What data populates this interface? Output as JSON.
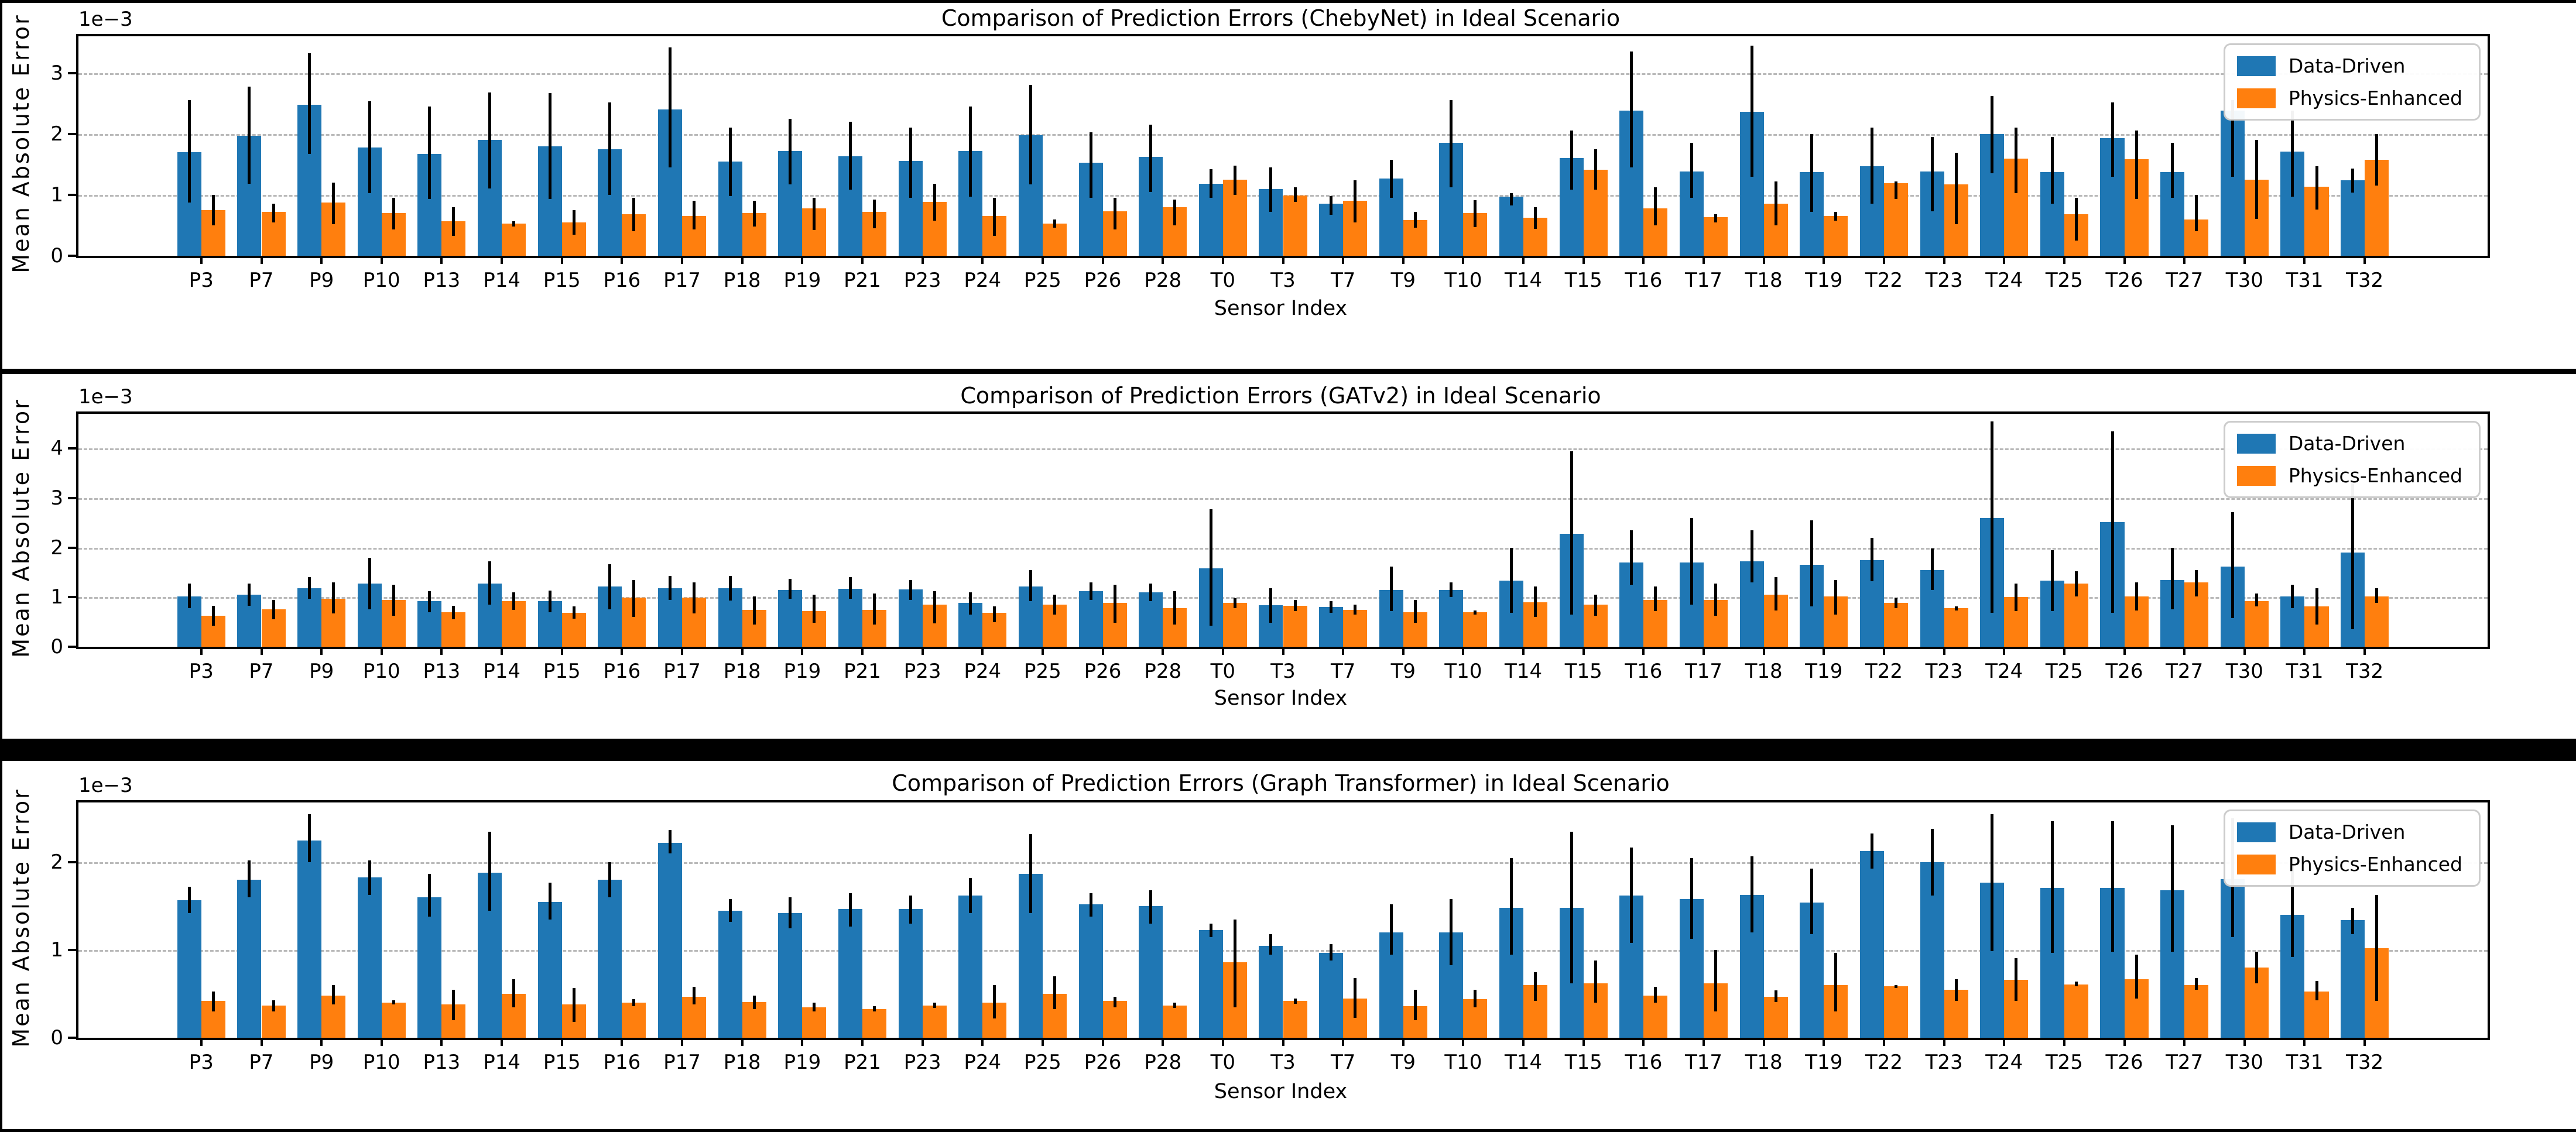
{
  "figure": {
    "background": "#ffffff",
    "separator_color": "#000000"
  },
  "colors": {
    "data_driven": "#1f77b4",
    "physics_enhanced": "#ff7f0e",
    "error_bar": "#000000",
    "grid": "#b9b9b9"
  },
  "chart_data": [
    {
      "type": "bar",
      "title": "Comparison of Prediction Errors (ChebyNet) in Ideal Scenario",
      "xlabel": "Sensor Index",
      "ylabel": "Mean Absolute Error",
      "y_offset_label": "1e−3",
      "grid": true,
      "legend_position": "upper right",
      "ylim": [
        0,
        3.6
      ],
      "yticks": [
        0,
        1,
        2,
        3
      ],
      "categories": [
        "P3",
        "P7",
        "P9",
        "P10",
        "P13",
        "P14",
        "P15",
        "P16",
        "P17",
        "P18",
        "P19",
        "P21",
        "P23",
        "P24",
        "P25",
        "P26",
        "P28",
        "T0",
        "T3",
        "T7",
        "T9",
        "T10",
        "T14",
        "T15",
        "T16",
        "T17",
        "T18",
        "T19",
        "T22",
        "T23",
        "T24",
        "T25",
        "T26",
        "T27",
        "T30",
        "T31",
        "T32"
      ],
      "series": [
        {
          "name": "Data-Driven",
          "color": "#1f77b4",
          "values": [
            1.7,
            1.97,
            2.48,
            1.78,
            1.67,
            1.9,
            1.8,
            1.75,
            2.4,
            1.55,
            1.72,
            1.63,
            1.56,
            1.72,
            1.98,
            1.53,
            1.62,
            1.18,
            1.09,
            0.85,
            1.27,
            1.85,
            0.97,
            1.6,
            2.38,
            1.38,
            2.36,
            1.37,
            1.47,
            1.38,
            2.0,
            1.37,
            1.93,
            1.37,
            2.38,
            1.71,
            1.24
          ],
          "err_low": [
            0.87,
            1.18,
            1.67,
            1.03,
            0.93,
            1.1,
            0.93,
            1.0,
            1.45,
            0.98,
            1.17,
            1.08,
            0.95,
            0.97,
            1.17,
            0.95,
            1.05,
            0.95,
            0.72,
            0.67,
            0.95,
            1.12,
            0.83,
            1.08,
            1.45,
            0.95,
            1.3,
            0.72,
            0.85,
            0.73,
            1.35,
            0.85,
            1.3,
            0.95,
            1.3,
            0.97,
            1.04
          ],
          "err_high": [
            2.55,
            2.77,
            3.32,
            2.53,
            2.45,
            2.68,
            2.67,
            2.52,
            3.42,
            2.1,
            2.25,
            2.2,
            2.1,
            2.45,
            2.8,
            2.03,
            2.15,
            1.42,
            1.45,
            0.98,
            1.57,
            2.55,
            1.03,
            2.05,
            3.35,
            1.85,
            3.45,
            2.0,
            2.1,
            1.95,
            2.62,
            1.95,
            2.52,
            1.85,
            2.55,
            2.38,
            1.43
          ]
        },
        {
          "name": "Physics-Enhanced",
          "color": "#ff7f0e",
          "values": [
            0.75,
            0.72,
            0.87,
            0.7,
            0.57,
            0.53,
            0.55,
            0.68,
            0.65,
            0.7,
            0.78,
            0.72,
            0.88,
            0.65,
            0.53,
            0.73,
            0.8,
            1.25,
            0.99,
            0.9,
            0.59,
            0.7,
            0.62,
            1.41,
            0.78,
            0.63,
            0.85,
            0.65,
            1.19,
            1.17,
            1.59,
            0.68,
            1.58,
            0.6,
            1.25,
            1.13,
            1.57
          ],
          "err_low": [
            0.5,
            0.55,
            0.52,
            0.43,
            0.33,
            0.48,
            0.35,
            0.4,
            0.43,
            0.48,
            0.42,
            0.45,
            0.58,
            0.33,
            0.46,
            0.43,
            0.5,
            1.0,
            0.88,
            0.55,
            0.46,
            0.47,
            0.44,
            1.08,
            0.5,
            0.55,
            0.5,
            0.58,
            0.93,
            0.52,
            1.03,
            0.25,
            0.93,
            0.4,
            0.6,
            0.76,
            1.15
          ],
          "err_high": [
            1.0,
            0.85,
            1.2,
            0.95,
            0.8,
            0.57,
            0.75,
            0.95,
            0.9,
            0.9,
            0.95,
            0.92,
            1.18,
            0.95,
            0.6,
            0.95,
            0.92,
            1.48,
            1.12,
            1.24,
            0.72,
            0.91,
            0.8,
            1.75,
            1.12,
            0.68,
            1.22,
            0.72,
            1.22,
            1.69,
            2.1,
            0.95,
            2.05,
            1.0,
            1.9,
            1.47,
            2.0
          ]
        }
      ]
    },
    {
      "type": "bar",
      "title": "Comparison of Prediction Errors (GATv2) in Ideal Scenario",
      "xlabel": "Sensor Index",
      "ylabel": "Mean Absolute Error",
      "y_offset_label": "1e−3",
      "grid": true,
      "legend_position": "upper right",
      "ylim": [
        0,
        4.7
      ],
      "yticks": [
        0,
        1,
        2,
        3,
        4
      ],
      "categories": [
        "P3",
        "P7",
        "P9",
        "P10",
        "P13",
        "P14",
        "P15",
        "P16",
        "P17",
        "P18",
        "P19",
        "P21",
        "P23",
        "P24",
        "P25",
        "P26",
        "P28",
        "T0",
        "T3",
        "T7",
        "T9",
        "T10",
        "T14",
        "T15",
        "T16",
        "T17",
        "T18",
        "T19",
        "T22",
        "T23",
        "T24",
        "T25",
        "T26",
        "T27",
        "T30",
        "T31",
        "T32"
      ],
      "series": [
        {
          "name": "Data-Driven",
          "color": "#1f77b4",
          "values": [
            1.02,
            1.05,
            1.18,
            1.27,
            0.92,
            1.28,
            0.92,
            1.22,
            1.18,
            1.18,
            1.15,
            1.17,
            1.16,
            0.88,
            1.22,
            1.12,
            1.1,
            1.58,
            0.84,
            0.8,
            1.15,
            1.15,
            1.33,
            2.28,
            1.7,
            1.7,
            1.72,
            1.65,
            1.75,
            1.55,
            2.6,
            1.33,
            2.52,
            1.35,
            1.62,
            1.02,
            1.9
          ],
          "err_low": [
            0.78,
            0.83,
            0.97,
            0.75,
            0.7,
            0.85,
            0.7,
            0.76,
            0.95,
            0.93,
            0.97,
            0.97,
            0.95,
            0.65,
            0.92,
            0.95,
            0.92,
            0.42,
            0.48,
            0.68,
            0.72,
            1.0,
            0.68,
            0.65,
            1.25,
            0.85,
            1.3,
            0.82,
            1.32,
            1.15,
            0.68,
            0.72,
            0.68,
            0.75,
            0.58,
            0.78,
            0.35
          ],
          "err_high": [
            1.28,
            1.28,
            1.4,
            1.8,
            1.12,
            1.73,
            1.13,
            1.67,
            1.43,
            1.43,
            1.37,
            1.4,
            1.35,
            1.1,
            1.55,
            1.3,
            1.28,
            2.77,
            1.18,
            0.92,
            1.62,
            1.3,
            2.0,
            3.95,
            2.35,
            2.6,
            2.35,
            2.55,
            2.2,
            1.98,
            4.55,
            1.95,
            4.35,
            2.0,
            2.72,
            1.25,
            3.3
          ]
        },
        {
          "name": "Physics-Enhanced",
          "color": "#ff7f0e",
          "values": [
            0.63,
            0.76,
            0.97,
            0.94,
            0.7,
            0.92,
            0.68,
            0.99,
            0.99,
            0.75,
            0.72,
            0.75,
            0.85,
            0.68,
            0.85,
            0.88,
            0.78,
            0.89,
            0.83,
            0.75,
            0.7,
            0.7,
            0.9,
            0.85,
            0.95,
            0.95,
            1.05,
            1.02,
            0.88,
            0.78,
            1.0,
            1.28,
            1.02,
            1.3,
            0.92,
            0.82,
            1.02
          ],
          "err_low": [
            0.42,
            0.56,
            0.67,
            0.62,
            0.55,
            0.74,
            0.57,
            0.6,
            0.67,
            0.45,
            0.48,
            0.45,
            0.47,
            0.5,
            0.65,
            0.48,
            0.45,
            0.78,
            0.72,
            0.65,
            0.48,
            0.65,
            0.6,
            0.63,
            0.72,
            0.63,
            0.73,
            0.65,
            0.78,
            0.73,
            0.72,
            1.02,
            0.73,
            1.02,
            0.82,
            0.45,
            0.88
          ],
          "err_high": [
            0.83,
            0.95,
            1.3,
            1.25,
            0.83,
            1.1,
            0.82,
            1.35,
            1.3,
            1.02,
            1.05,
            1.08,
            1.12,
            0.82,
            1.05,
            1.25,
            1.12,
            0.98,
            0.95,
            0.85,
            0.95,
            0.73,
            1.22,
            1.05,
            1.22,
            1.28,
            1.4,
            1.35,
            0.98,
            0.82,
            1.28,
            1.52,
            1.3,
            1.55,
            1.08,
            1.18,
            1.18
          ]
        }
      ]
    },
    {
      "type": "bar",
      "title": "Comparison of Prediction Errors (Graph Transformer) in Ideal Scenario",
      "xlabel": "Sensor Index",
      "ylabel": "Mean Absolute Error",
      "y_offset_label": "1e−3",
      "grid": true,
      "legend_position": "upper right",
      "ylim": [
        0,
        2.68
      ],
      "yticks": [
        0,
        1,
        2
      ],
      "categories": [
        "P3",
        "P7",
        "P9",
        "P10",
        "P13",
        "P14",
        "P15",
        "P16",
        "P17",
        "P18",
        "P19",
        "P21",
        "P23",
        "P24",
        "P25",
        "P26",
        "P28",
        "T0",
        "T3",
        "T7",
        "T9",
        "T10",
        "T14",
        "T15",
        "T16",
        "T17",
        "T18",
        "T19",
        "T22",
        "T23",
        "T24",
        "T25",
        "T26",
        "T27",
        "T30",
        "T31",
        "T32"
      ],
      "series": [
        {
          "name": "Data-Driven",
          "color": "#1f77b4",
          "values": [
            1.57,
            1.8,
            2.25,
            1.83,
            1.6,
            1.88,
            1.55,
            1.8,
            2.22,
            1.45,
            1.42,
            1.47,
            1.47,
            1.62,
            1.87,
            1.52,
            1.5,
            1.23,
            1.05,
            0.97,
            1.2,
            1.2,
            1.48,
            1.48,
            1.62,
            1.58,
            1.63,
            1.54,
            2.13,
            2.0,
            1.77,
            1.71,
            1.71,
            1.68,
            1.81,
            1.4,
            1.34
          ],
          "err_low": [
            1.42,
            1.6,
            2.0,
            1.63,
            1.38,
            1.45,
            1.35,
            1.6,
            2.1,
            1.32,
            1.25,
            1.27,
            1.3,
            1.42,
            1.42,
            1.38,
            1.3,
            1.15,
            0.95,
            0.88,
            0.95,
            0.83,
            0.95,
            0.62,
            1.08,
            1.13,
            1.2,
            1.18,
            1.93,
            1.62,
            0.99,
            0.97,
            0.98,
            0.98,
            1.15,
            0.92,
            1.18
          ],
          "err_high": [
            1.72,
            2.02,
            2.55,
            2.02,
            1.87,
            2.35,
            1.77,
            2.0,
            2.37,
            1.58,
            1.6,
            1.65,
            1.62,
            1.82,
            2.32,
            1.65,
            1.68,
            1.3,
            1.18,
            1.07,
            1.52,
            1.58,
            2.05,
            2.35,
            2.17,
            2.05,
            2.07,
            1.93,
            2.33,
            2.38,
            2.55,
            2.47,
            2.47,
            2.42,
            2.5,
            1.97,
            1.48
          ]
        },
        {
          "name": "Physics-Enhanced",
          "color": "#ff7f0e",
          "values": [
            0.42,
            0.37,
            0.48,
            0.4,
            0.38,
            0.5,
            0.38,
            0.4,
            0.47,
            0.41,
            0.35,
            0.33,
            0.37,
            0.4,
            0.5,
            0.42,
            0.37,
            0.86,
            0.42,
            0.45,
            0.36,
            0.44,
            0.6,
            0.62,
            0.48,
            0.62,
            0.47,
            0.6,
            0.59,
            0.55,
            0.66,
            0.61,
            0.67,
            0.6,
            0.8,
            0.53,
            1.02
          ],
          "err_low": [
            0.3,
            0.3,
            0.38,
            0.38,
            0.2,
            0.35,
            0.18,
            0.36,
            0.38,
            0.33,
            0.3,
            0.3,
            0.34,
            0.22,
            0.33,
            0.35,
            0.34,
            0.35,
            0.39,
            0.23,
            0.2,
            0.35,
            0.42,
            0.4,
            0.4,
            0.3,
            0.41,
            0.3,
            0.57,
            0.42,
            0.42,
            0.59,
            0.45,
            0.55,
            0.62,
            0.43,
            0.42
          ],
          "err_high": [
            0.53,
            0.43,
            0.6,
            0.43,
            0.55,
            0.67,
            0.57,
            0.44,
            0.58,
            0.48,
            0.4,
            0.36,
            0.4,
            0.6,
            0.7,
            0.47,
            0.4,
            1.35,
            0.45,
            0.68,
            0.55,
            0.55,
            0.75,
            0.88,
            0.58,
            1.0,
            0.54,
            0.97,
            0.6,
            0.67,
            0.91,
            0.64,
            0.95,
            0.68,
            0.98,
            0.65,
            1.63
          ]
        }
      ]
    }
  ]
}
